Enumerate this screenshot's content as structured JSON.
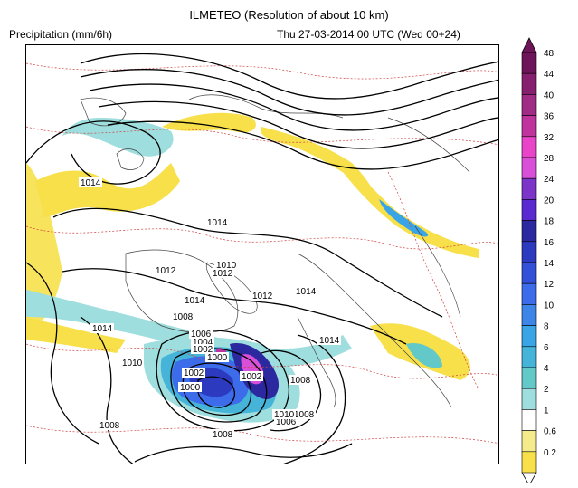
{
  "header": {
    "title": "ILMETEO (Resolution of about 10 km)",
    "variable": "Precipitation (mm/6h)",
    "datetime": "Thu 27-03-2014 00 UTC (Wed 00+24)"
  },
  "isobar_labels": [
    "1014",
    "1014",
    "1012",
    "1010",
    "1012",
    "1014",
    "1008",
    "1012",
    "1014",
    "1014",
    "1014",
    "1010",
    "1006",
    "1004",
    "1002",
    "1000",
    "1002",
    "1000",
    "1002",
    "1008",
    "1014",
    "1008",
    "1006",
    "1008",
    "1008",
    "1010"
  ],
  "legend": {
    "levels": [
      "0.2",
      "0.6",
      "1",
      "2",
      "4",
      "6",
      "8",
      "10",
      "12",
      "14",
      "16",
      "18",
      "20",
      "24",
      "28",
      "32",
      "36",
      "40",
      "44",
      "48"
    ],
    "colors": {
      "0.2": "#f7e04a",
      "0.6": "#f5ea8c",
      "1": "#ffffff",
      "2": "#9fdede",
      "4": "#63c8c8",
      "6": "#45b4d8",
      "8": "#3aa5e6",
      "10": "#3d86e8",
      "12": "#3d6cea",
      "14": "#3350d8",
      "16": "#2b3abf",
      "18": "#2c28a0",
      "20": "#5a2ad0",
      "24": "#7b35c8",
      "28": "#d850d8",
      "32": "#e845c8",
      "36": "#c0359d",
      "40": "#a12c86",
      "44": "#86206e",
      "48": "#6e1459"
    }
  }
}
